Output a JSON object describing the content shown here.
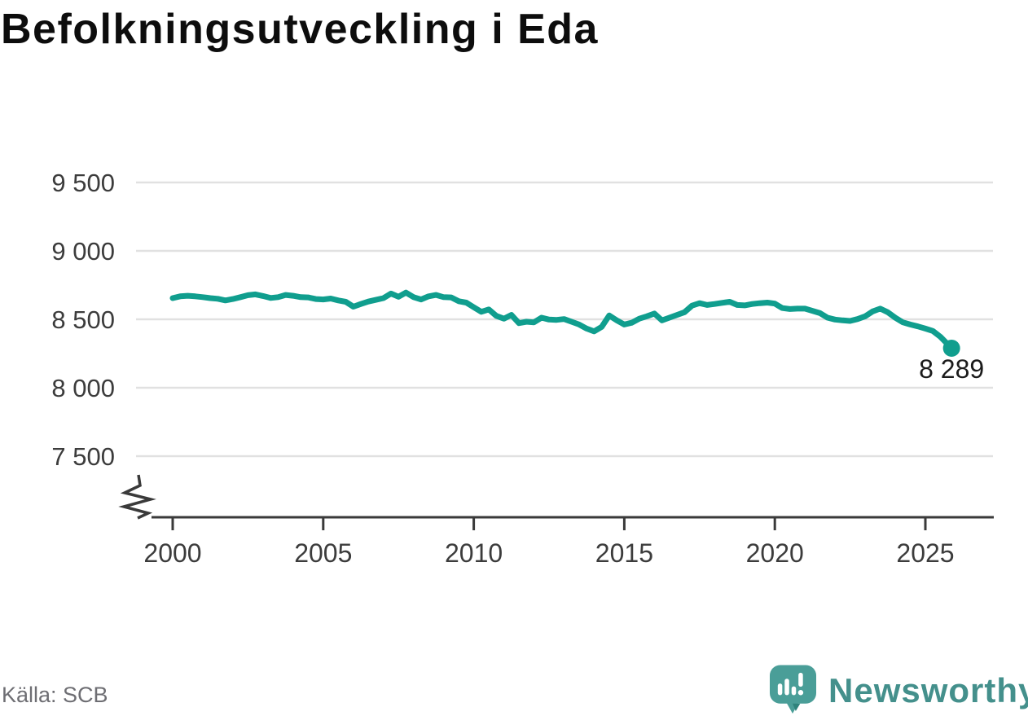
{
  "page": {
    "title": "Befolkningsutveckling i Eda",
    "source_label": "Källa: SCB"
  },
  "branding": {
    "wordmark": "Newsworthy"
  },
  "colors": {
    "line": "#109e8e",
    "grid": "#e1e1e1",
    "axis": "#3a3a3a",
    "tick_label": "#3c3c3c",
    "title": "#0d0d0d",
    "end_label": "#1b1b1b",
    "source": "#6e6e73",
    "logo_bubble": "#4a9e98",
    "logo_fold": "#2f837c",
    "wordmark": "#44908c"
  },
  "chart_data": {
    "type": "line",
    "title": "Befolkningsutveckling i Eda",
    "source": "SCB",
    "legend": "none",
    "grid": "horizontal-only",
    "axis_break": true,
    "xlim": [
      1999.3,
      2027.3
    ],
    "ylim": [
      7200,
      9650
    ],
    "x_ticks": [
      2000,
      2005,
      2010,
      2015,
      2020,
      2025
    ],
    "x_tick_labels": [
      "2000",
      "2005",
      "2010",
      "2015",
      "2020",
      "2025"
    ],
    "y_ticks": [
      9500,
      9000,
      8500,
      8000,
      7500
    ],
    "y_tick_labels": [
      "9 500",
      "9 000",
      "8 500",
      "8 000",
      "7 500"
    ],
    "end_label": "8 289",
    "end_value": 8289,
    "series": [
      {
        "name": "Eda",
        "x": [
          2000.0,
          2000.25,
          2000.5,
          2000.75,
          2001.0,
          2001.25,
          2001.5,
          2001.75,
          2002.0,
          2002.25,
          2002.5,
          2002.75,
          2003.0,
          2003.25,
          2003.5,
          2003.75,
          2004.0,
          2004.25,
          2004.5,
          2004.75,
          2005.0,
          2005.25,
          2005.5,
          2005.75,
          2006.0,
          2006.25,
          2006.5,
          2006.75,
          2007.0,
          2007.25,
          2007.5,
          2007.75,
          2008.0,
          2008.25,
          2008.5,
          2008.75,
          2009.0,
          2009.25,
          2009.5,
          2009.75,
          2010.0,
          2010.25,
          2010.5,
          2010.75,
          2011.0,
          2011.25,
          2011.5,
          2011.75,
          2012.0,
          2012.25,
          2012.5,
          2012.75,
          2013.0,
          2013.25,
          2013.5,
          2013.75,
          2014.0,
          2014.25,
          2014.5,
          2014.75,
          2015.0,
          2015.25,
          2015.5,
          2015.75,
          2016.0,
          2016.25,
          2016.5,
          2016.75,
          2017.0,
          2017.25,
          2017.5,
          2017.75,
          2018.0,
          2018.25,
          2018.5,
          2018.75,
          2019.0,
          2019.25,
          2019.5,
          2019.75,
          2020.0,
          2020.25,
          2020.5,
          2020.75,
          2021.0,
          2021.25,
          2021.5,
          2021.75,
          2022.0,
          2022.25,
          2022.5,
          2022.75,
          2023.0,
          2023.25,
          2023.5,
          2023.75,
          2024.0,
          2024.25,
          2024.5,
          2024.75,
          2025.0,
          2025.25,
          2025.5,
          2025.87
        ],
        "values": [
          8655,
          8668,
          8672,
          8668,
          8662,
          8655,
          8650,
          8638,
          8648,
          8662,
          8676,
          8682,
          8670,
          8656,
          8662,
          8678,
          8672,
          8662,
          8660,
          8648,
          8645,
          8652,
          8638,
          8628,
          8592,
          8612,
          8630,
          8642,
          8655,
          8688,
          8665,
          8695,
          8662,
          8645,
          8668,
          8678,
          8662,
          8660,
          8632,
          8622,
          8588,
          8555,
          8572,
          8525,
          8505,
          8532,
          8472,
          8482,
          8478,
          8512,
          8498,
          8496,
          8502,
          8482,
          8462,
          8432,
          8412,
          8445,
          8528,
          8492,
          8462,
          8475,
          8505,
          8522,
          8542,
          8492,
          8512,
          8532,
          8552,
          8600,
          8618,
          8605,
          8612,
          8620,
          8628,
          8605,
          8602,
          8612,
          8618,
          8622,
          8615,
          8582,
          8575,
          8578,
          8578,
          8562,
          8545,
          8512,
          8498,
          8492,
          8488,
          8502,
          8522,
          8558,
          8578,
          8552,
          8512,
          8478,
          8462,
          8448,
          8432,
          8415,
          8372,
          8289
        ]
      }
    ]
  }
}
